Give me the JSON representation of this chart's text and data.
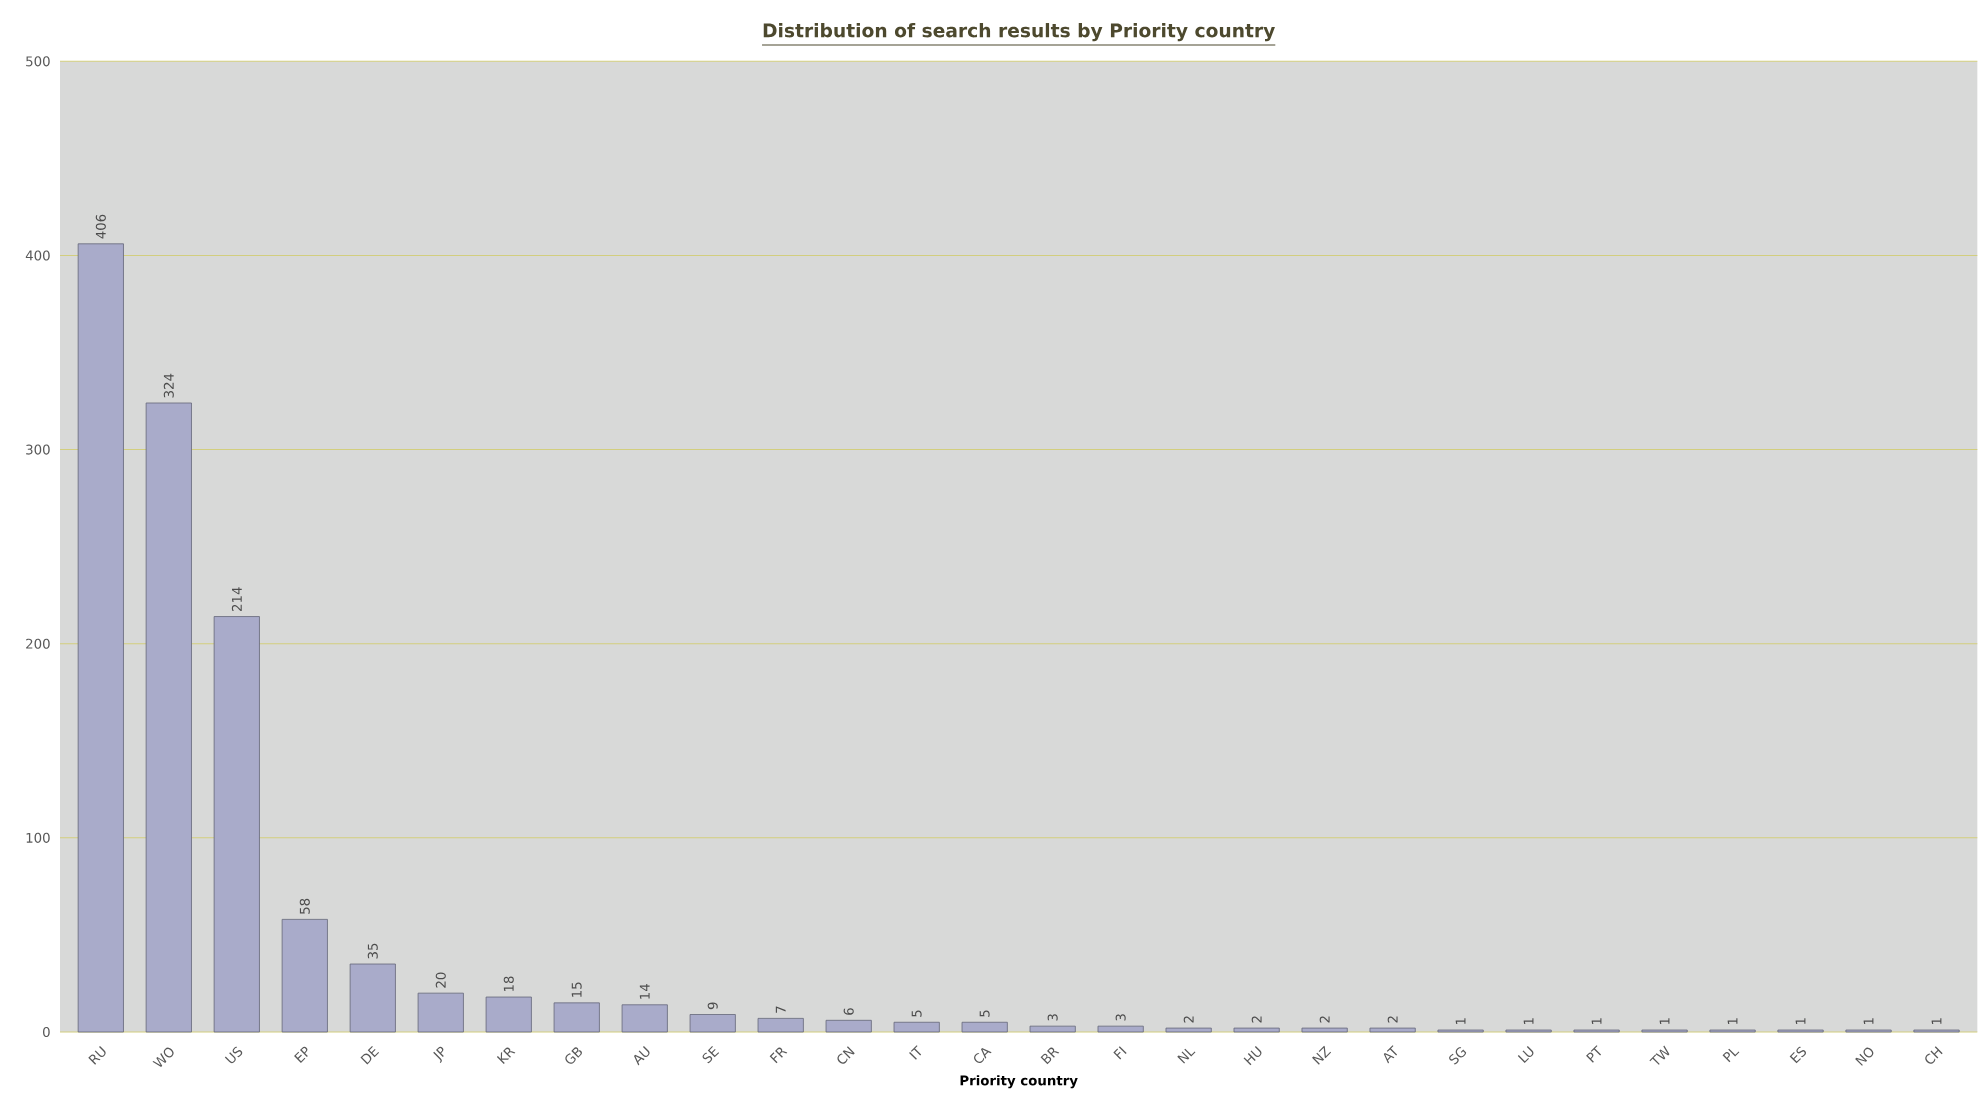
{
  "chart_data": {
    "type": "bar",
    "title": "Distribution of search results by Priority country",
    "xlabel": "Priority country",
    "categories": [
      "RU",
      "WO",
      "US",
      "EP",
      "DE",
      "JP",
      "KR",
      "GB",
      "AU",
      "SE",
      "FR",
      "CN",
      "IT",
      "CA",
      "BR",
      "FI",
      "NL",
      "HU",
      "NZ",
      "AT",
      "SG",
      "LU",
      "PT",
      "TW",
      "PL",
      "ES",
      "NO",
      "CH"
    ],
    "values": [
      406,
      324,
      214,
      58,
      35,
      20,
      18,
      15,
      14,
      9,
      7,
      6,
      5,
      5,
      3,
      3,
      2,
      2,
      2,
      2,
      1,
      1,
      1,
      1,
      1,
      1,
      1,
      1
    ],
    "color": "#a9abca",
    "ylim": [
      0,
      500
    ],
    "yticks": [
      0,
      100,
      200,
      300,
      400,
      500
    ],
    "grid": "y",
    "data_labels": true
  }
}
